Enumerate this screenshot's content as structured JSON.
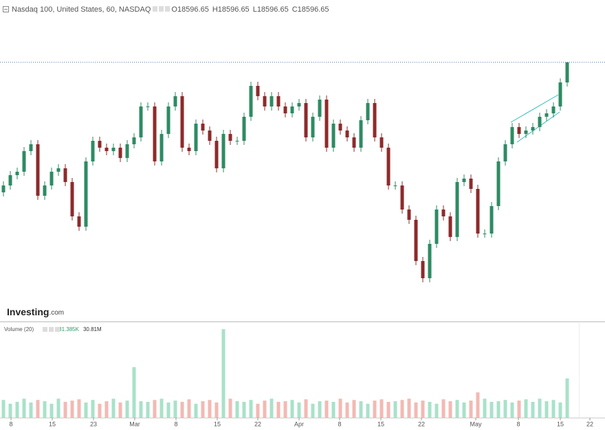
{
  "header": {
    "title": "Nasdaq 100, United States, 60, NASDAQ",
    "o_label": "O",
    "open": 18596.65,
    "h_label": "H",
    "high": 18596.65,
    "l_label": "L",
    "low": 18596.65,
    "c_label": "C",
    "close": 18596.65
  },
  "chart_data": {
    "type": "candlestick",
    "logo": "Investing",
    "logo_suffix": ".com",
    "up_color": "#2e8b63",
    "down_color": "#8e2b2b",
    "ylim": [
      16710,
      19050
    ],
    "xlim": [
      -0.5,
      87.5
    ],
    "xticks": [
      {
        "value": 1.1,
        "label": "8"
      },
      {
        "value": 7.1,
        "label": "15"
      },
      {
        "value": 13.1,
        "label": "23"
      },
      {
        "value": 19.1,
        "label": "Mar"
      },
      {
        "value": 25.1,
        "label": "8"
      },
      {
        "value": 31.1,
        "label": "15"
      },
      {
        "value": 37,
        "label": "22"
      },
      {
        "value": 43,
        "label": "Apr"
      },
      {
        "value": 48.9,
        "label": "8"
      },
      {
        "value": 54.9,
        "label": "15"
      },
      {
        "value": 60.8,
        "label": "22"
      },
      {
        "value": 68.7,
        "label": "May"
      },
      {
        "value": 74.9,
        "label": "8"
      },
      {
        "value": 81,
        "label": "15"
      },
      {
        "value": 85.3,
        "label": "22"
      }
    ],
    "open": [
      17650,
      17700,
      17775,
      17800,
      17950,
      18000,
      17625,
      17700,
      17800,
      17825,
      17725,
      17475,
      17400,
      17875,
      18025,
      17975,
      17950,
      17975,
      17900,
      18000,
      18050,
      18275,
      18275,
      17875,
      18075,
      18275,
      18350,
      17975,
      17950,
      18150,
      18100,
      18025,
      17825,
      18075,
      18025,
      18025,
      18200,
      18425,
      18350,
      18275,
      18350,
      18275,
      18225,
      18275,
      18300,
      18050,
      18200,
      18325,
      17975,
      18150,
      18100,
      18050,
      17975,
      18175,
      18300,
      18050,
      17975,
      17700,
      17700,
      17525,
      17450,
      17150,
      17025,
      17275,
      17525,
      17475,
      17325,
      17725,
      17750,
      17675,
      17350,
      17350,
      17550,
      17875,
      18000,
      18125,
      18075,
      18100,
      18125,
      18200,
      18225,
      18275,
      18450
    ],
    "high": [
      17730,
      17805,
      17830,
      17980,
      18030,
      18030,
      17730,
      17830,
      17855,
      17855,
      17755,
      17505,
      17905,
      18055,
      18055,
      18005,
      18005,
      18005,
      18030,
      18080,
      18305,
      18305,
      18305,
      18105,
      18305,
      18380,
      18380,
      18005,
      18180,
      18180,
      18130,
      18055,
      18105,
      18105,
      18055,
      18230,
      18455,
      18455,
      18380,
      18380,
      18380,
      18305,
      18305,
      18330,
      18330,
      18230,
      18355,
      18355,
      18180,
      18180,
      18130,
      18080,
      18205,
      18330,
      18330,
      18080,
      18005,
      17730,
      17730,
      17555,
      17480,
      17180,
      17305,
      17555,
      17555,
      17505,
      17755,
      17780,
      17780,
      17705,
      17380,
      17580,
      17905,
      18030,
      18155,
      18155,
      18130,
      18155,
      18230,
      18255,
      18305,
      18480,
      18596.65
    ],
    "low": [
      17620,
      17670,
      17745,
      17770,
      17920,
      17595,
      17595,
      17670,
      17770,
      17695,
      17445,
      17370,
      17370,
      17845,
      17945,
      17920,
      17920,
      17870,
      17870,
      17970,
      18020,
      18245,
      17845,
      17845,
      18045,
      18245,
      17945,
      17920,
      17920,
      18070,
      17995,
      17795,
      17795,
      17995,
      17995,
      17995,
      18170,
      18320,
      18245,
      18245,
      18245,
      18195,
      18195,
      18245,
      18020,
      18020,
      18170,
      17945,
      17945,
      18070,
      18020,
      17945,
      17945,
      18145,
      18020,
      17945,
      17670,
      17670,
      17495,
      17420,
      17120,
      16995,
      16995,
      17245,
      17445,
      17295,
      17295,
      17695,
      17645,
      17320,
      17320,
      17320,
      17520,
      17845,
      17970,
      18045,
      18045,
      18070,
      18095,
      18170,
      18195,
      18245,
      18420
    ],
    "close": [
      17700,
      17775,
      17800,
      17950,
      18000,
      17625,
      17700,
      17800,
      17825,
      17725,
      17475,
      17400,
      17875,
      18025,
      17975,
      17950,
      17975,
      17900,
      18000,
      18050,
      18275,
      18275,
      17875,
      18075,
      18275,
      18350,
      17975,
      17950,
      18150,
      18100,
      18025,
      17825,
      18075,
      18025,
      18025,
      18200,
      18425,
      18350,
      18275,
      18350,
      18275,
      18225,
      18275,
      18300,
      18050,
      18200,
      18325,
      17975,
      18150,
      18100,
      18050,
      17975,
      18175,
      18300,
      18050,
      17975,
      17700,
      17700,
      17525,
      17450,
      17150,
      17025,
      17275,
      17525,
      17475,
      17325,
      17725,
      17750,
      17675,
      17350,
      17350,
      17550,
      17875,
      18000,
      18125,
      18075,
      18100,
      18125,
      18200,
      18225,
      18275,
      18450,
      18596.65
    ],
    "volume_title": "Volume (20)",
    "volume_last": "31.385K",
    "volume_ma_label": "30.81M",
    "volume_up_color": "#a8e2c9",
    "volume_down_color": "#f3b9b3",
    "volume_ylim": [
      0,
      150
    ],
    "volume": [
      28,
      22,
      25,
      30,
      24,
      28,
      26,
      22,
      30,
      25,
      27,
      29,
      24,
      28,
      22,
      26,
      30,
      24,
      27,
      80,
      26,
      25,
      28,
      30,
      24,
      27,
      25,
      29,
      22,
      26,
      28,
      24,
      140,
      30,
      26,
      25,
      28,
      22,
      27,
      30,
      25,
      26,
      28,
      24,
      29,
      22,
      26,
      27,
      25,
      30,
      24,
      28,
      26,
      22,
      27,
      29,
      25,
      26,
      28,
      30,
      24,
      27,
      25,
      22,
      29,
      26,
      28,
      24,
      27,
      40,
      30,
      25,
      26,
      28,
      24,
      27,
      29,
      25,
      30,
      26,
      28,
      24,
      62
    ]
  }
}
